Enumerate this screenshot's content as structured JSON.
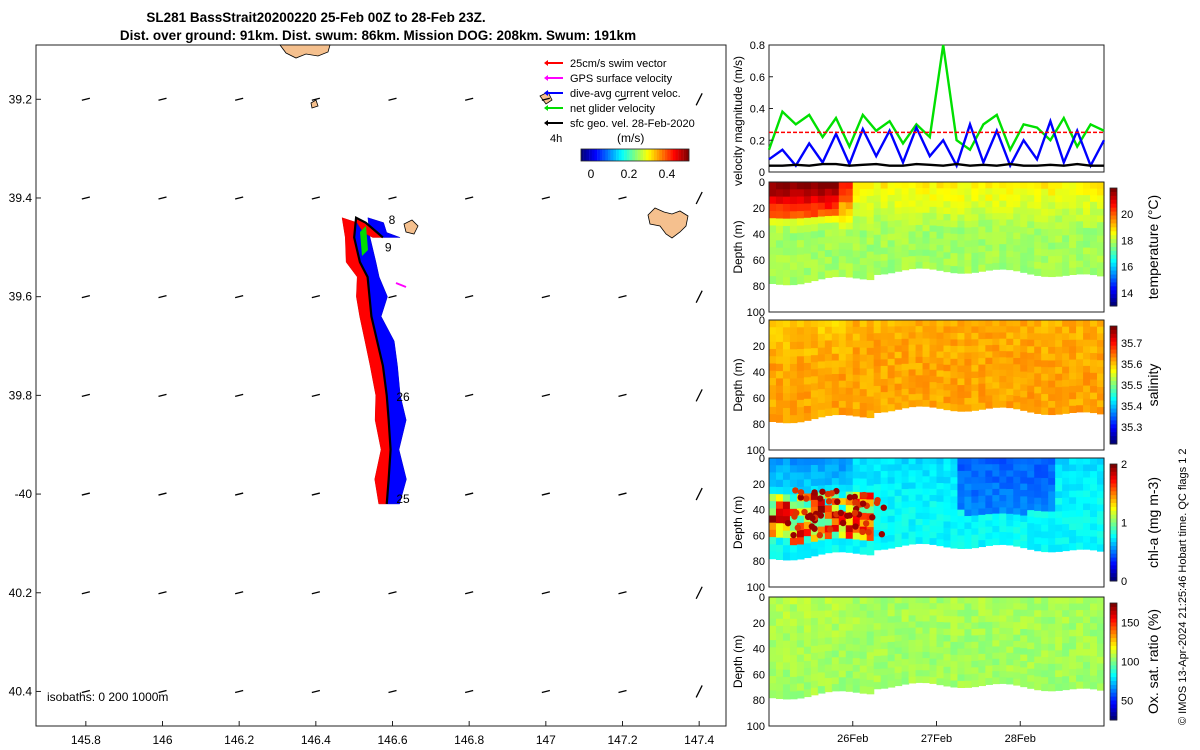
{
  "title": {
    "line1": "SL281 BassStrait20200220 25-Feb 00Z to 28-Feb 23Z.",
    "line2": "Dist. over ground: 91km. Dist. swum: 86km. Mission DOG: 208km. Swum: 191km"
  },
  "map": {
    "xticks": [
      145.8,
      146,
      146.2,
      146.4,
      146.6,
      146.8,
      147,
      147.2,
      147.4
    ],
    "xtick_labels": [
      "145.8",
      "146",
      "146.2",
      "146.4",
      "146.6",
      "146.8",
      "147",
      "147.2",
      "147.4"
    ],
    "yticks": [
      -39.2,
      -39.4,
      -39.6,
      -39.8,
      -40,
      -40.2,
      -40.4
    ],
    "ytick_labels": [
      "39.2",
      "39.4",
      "39.6",
      "39.8",
      "-40",
      "40.2",
      "40.4"
    ],
    "xlim": [
      145.67,
      147.47
    ],
    "ylim": [
      -40.47,
      -39.09
    ],
    "isobaths_label": "isobaths: 0   200  1000m",
    "day_labels": [
      {
        "text": "8",
        "lon": 146.59,
        "lat": -39.445
      },
      {
        "text": "9",
        "lon": 146.58,
        "lat": -39.5
      },
      {
        "text": "26",
        "lon": 146.61,
        "lat": -39.803
      },
      {
        "text": "25",
        "lon": 146.61,
        "lat": -40.01
      }
    ],
    "track": [
      [
        146.585,
        -40.02
      ],
      [
        146.59,
        -39.97
      ],
      [
        146.595,
        -39.91
      ],
      [
        146.59,
        -39.85
      ],
      [
        146.585,
        -39.8
      ],
      [
        146.575,
        -39.74
      ],
      [
        146.56,
        -39.69
      ],
      [
        146.545,
        -39.64
      ],
      [
        146.54,
        -39.6
      ],
      [
        146.535,
        -39.56
      ],
      [
        146.515,
        -39.53
      ],
      [
        146.5,
        -39.48
      ],
      [
        146.505,
        -39.44
      ],
      [
        146.53,
        -39.45
      ],
      [
        146.56,
        -39.47
      ],
      [
        146.575,
        -39.48
      ]
    ],
    "legend": {
      "items": [
        {
          "label": "25cm/s swim vector",
          "color": "#ff0000"
        },
        {
          "label": "GPS surface velocity",
          "color": "#ff00ff"
        },
        {
          "label": "dive-avg current veloc.",
          "color": "#0000ff"
        },
        {
          "label": "net glider velocity",
          "color": "#00dd00"
        },
        {
          "label": "sfc geo. vel. 28-Feb-2020",
          "color": "#000000"
        }
      ],
      "duration_label": "4h",
      "units_label": "(m/s)",
      "colorbar_ticks": [
        "0",
        "0.2",
        "0.4"
      ]
    }
  },
  "chart_data": [
    {
      "type": "line",
      "ylabel": "velocity magnitude (m/s)",
      "ylim": [
        0,
        0.8
      ],
      "yticks": [
        0,
        0.2,
        0.4,
        0.6,
        0.8
      ],
      "x": [
        0,
        0.04,
        0.08,
        0.12,
        0.16,
        0.2,
        0.24,
        0.28,
        0.32,
        0.36,
        0.4,
        0.44,
        0.48,
        0.52,
        0.56,
        0.6,
        0.64,
        0.68,
        0.72,
        0.76,
        0.8,
        0.84,
        0.88,
        0.92,
        0.96,
        1
      ],
      "series": [
        {
          "name": "net glider velocity",
          "color": "#00e000",
          "values": [
            0.14,
            0.38,
            0.3,
            0.36,
            0.22,
            0.34,
            0.16,
            0.36,
            0.26,
            0.32,
            0.18,
            0.3,
            0.22,
            0.8,
            0.2,
            0.14,
            0.3,
            0.36,
            0.14,
            0.3,
            0.28,
            0.2,
            0.34,
            0.16,
            0.3,
            0.26
          ]
        },
        {
          "name": "dive-avg current veloc.",
          "color": "#0000ff",
          "values": [
            0.08,
            0.14,
            0.04,
            0.18,
            0.06,
            0.24,
            0.05,
            0.27,
            0.1,
            0.26,
            0.06,
            0.28,
            0.1,
            0.2,
            0.04,
            0.3,
            0.06,
            0.26,
            0.04,
            0.2,
            0.08,
            0.32,
            0.06,
            0.26,
            0.04,
            0.2
          ]
        },
        {
          "name": "25cm/s swim vector",
          "color": "#ff0000",
          "style": "dashed",
          "values": [
            0.25,
            0.25,
            0.25,
            0.25,
            0.25,
            0.25,
            0.25,
            0.25,
            0.25,
            0.25,
            0.25,
            0.25,
            0.25,
            0.25,
            0.25,
            0.25,
            0.25,
            0.25,
            0.25,
            0.25,
            0.25,
            0.25,
            0.25,
            0.25,
            0.25,
            0.25
          ]
        },
        {
          "name": "sfc geo. vel.",
          "color": "#000000",
          "values": [
            0.04,
            0.04,
            0.045,
            0.04,
            0.05,
            0.05,
            0.04,
            0.045,
            0.05,
            0.04,
            0.04,
            0.05,
            0.045,
            0.04,
            0.05,
            0.04,
            0.045,
            0.04,
            0.05,
            0.04,
            0.04,
            0.045,
            0.04,
            0.05,
            0.04,
            0.04
          ]
        }
      ]
    },
    {
      "type": "heatmap",
      "ylabel": "Depth (m)",
      "ylim": [
        100,
        0
      ],
      "yticks": [
        0,
        20,
        40,
        60,
        80,
        100
      ],
      "colorbar_label": "temperature (°C)",
      "colorbar_range": [
        13,
        22
      ],
      "colorbar_ticks": [
        14,
        16,
        18,
        20
      ],
      "base_value": 17.8,
      "surface_value": 20.8
    },
    {
      "type": "heatmap",
      "ylabel": "Depth (m)",
      "ylim": [
        100,
        0
      ],
      "yticks": [
        0,
        20,
        40,
        60,
        80,
        100
      ],
      "colorbar_label": "salinity",
      "colorbar_range": [
        35.22,
        35.78
      ],
      "colorbar_ticks": [
        35.3,
        35.4,
        35.5,
        35.6,
        35.7
      ],
      "base_value": 35.62,
      "surface_value": 35.6
    },
    {
      "type": "heatmap",
      "ylabel": "Depth (m)",
      "ylim": [
        100,
        0
      ],
      "yticks": [
        0,
        20,
        40,
        60,
        80,
        100
      ],
      "colorbar_label": "chl-a (mg m-3)",
      "colorbar_range": [
        0,
        2
      ],
      "colorbar_ticks": [
        0,
        1,
        2
      ],
      "base_value": 0.75,
      "surface_value": 0.55
    },
    {
      "type": "heatmap",
      "ylabel": "Depth (m)",
      "ylim": [
        100,
        0
      ],
      "yticks": [
        0,
        20,
        40,
        60,
        80,
        100
      ],
      "colorbar_label": "Ox. sat. ratio (%)",
      "colorbar_range": [
        25,
        175
      ],
      "colorbar_ticks": [
        50,
        100,
        150
      ],
      "base_value": 105,
      "surface_value": 108
    }
  ],
  "time_axis": {
    "labels": [
      "26Feb",
      "27Feb",
      "28Feb"
    ],
    "positions": [
      0.25,
      0.5,
      0.75
    ]
  },
  "footer": {
    "credit": "© IMOS 13-Apr-2024 21:25:46 Hobart time. QC flags 1  2"
  }
}
